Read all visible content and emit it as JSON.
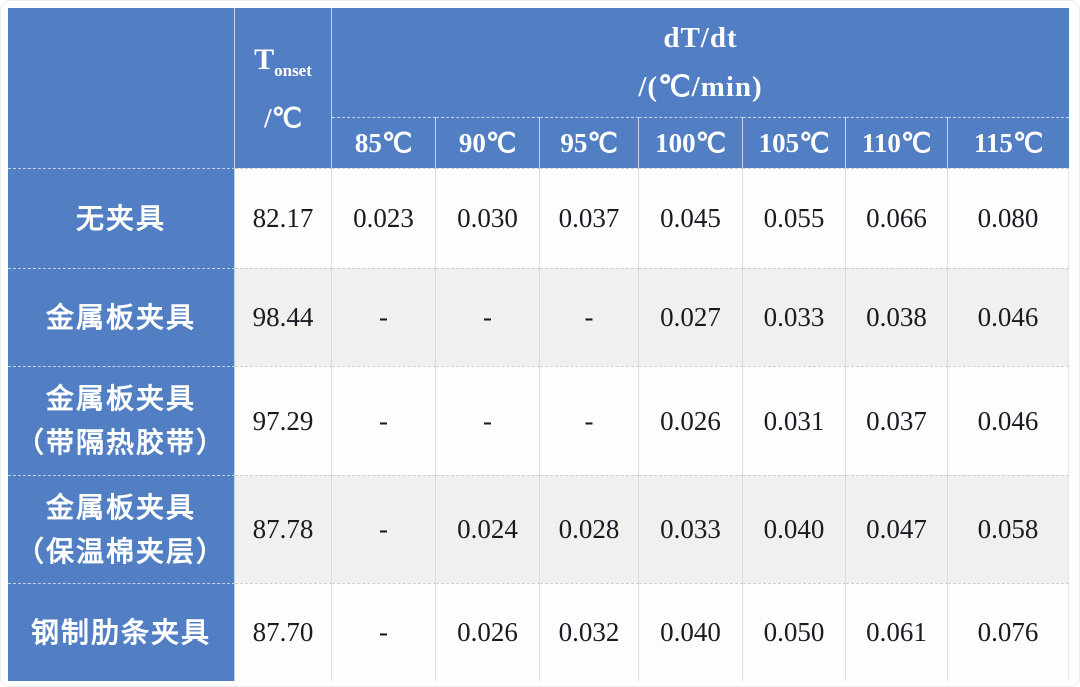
{
  "table": {
    "header": {
      "tonset_symbol": "T",
      "tonset_sub": "onset",
      "tonset_unit": "/℃",
      "group_line1": "dT/dt",
      "group_line2": "/(℃/min)",
      "temp_columns": [
        "85℃",
        "90℃",
        "95℃",
        "100℃",
        "105℃",
        "110℃",
        "115℃"
      ]
    },
    "rows": [
      {
        "label_lines": [
          "无夹具"
        ],
        "tonset": "82.17",
        "values": [
          "0.023",
          "0.030",
          "0.037",
          "0.045",
          "0.055",
          "0.066",
          "0.080"
        ]
      },
      {
        "label_lines": [
          "金属板夹具"
        ],
        "tonset": "98.44",
        "values": [
          "-",
          "-",
          "-",
          "0.027",
          "0.033",
          "0.038",
          "0.046"
        ]
      },
      {
        "label_lines": [
          "金属板夹具",
          "（带隔热胶带）"
        ],
        "tonset": "97.29",
        "values": [
          "-",
          "-",
          "-",
          "0.026",
          "0.031",
          "0.037",
          "0.046"
        ]
      },
      {
        "label_lines": [
          "金属板夹具",
          "（保温棉夹层）"
        ],
        "tonset": "87.78",
        "values": [
          "-",
          "0.024",
          "0.028",
          "0.033",
          "0.040",
          "0.047",
          "0.058"
        ]
      },
      {
        "label_lines": [
          "钢制肋条夹具"
        ],
        "tonset": "87.70",
        "values": [
          "-",
          "0.026",
          "0.032",
          "0.040",
          "0.050",
          "0.061",
          "0.076"
        ]
      }
    ],
    "colors": {
      "header_blue": "#527ec4",
      "row_white": "#fdfdfd",
      "row_gray": "#f0f0ee",
      "border_gray": "#dcdcda",
      "text_dark": "#1a1a22",
      "text_white": "#ffffff"
    }
  },
  "chart_data": {
    "type": "table",
    "title": "",
    "column_group_header": "dT/dt /(℃/min)",
    "columns": [
      "",
      "T_onset /℃",
      "85℃",
      "90℃",
      "95℃",
      "100℃",
      "105℃",
      "110℃",
      "115℃"
    ],
    "rows": [
      [
        "无夹具",
        "82.17",
        "0.023",
        "0.030",
        "0.037",
        "0.045",
        "0.055",
        "0.066",
        "0.080"
      ],
      [
        "金属板夹具",
        "98.44",
        "-",
        "-",
        "-",
        "0.027",
        "0.033",
        "0.038",
        "0.046"
      ],
      [
        "金属板夹具（带隔热胶带）",
        "97.29",
        "-",
        "-",
        "-",
        "0.026",
        "0.031",
        "0.037",
        "0.046"
      ],
      [
        "金属板夹具（保温棉夹层）",
        "87.78",
        "-",
        "0.024",
        "0.028",
        "0.033",
        "0.040",
        "0.047",
        "0.058"
      ],
      [
        "钢制肋条夹具",
        "87.70",
        "-",
        "0.026",
        "0.032",
        "0.040",
        "0.050",
        "0.061",
        "0.076"
      ]
    ]
  }
}
